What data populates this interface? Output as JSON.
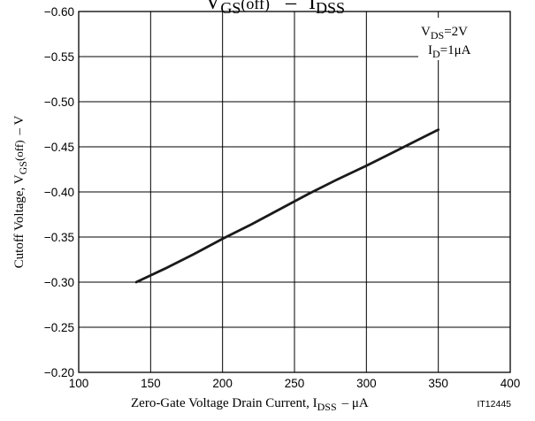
{
  "chart_data": {
    "type": "line",
    "title_parts": {
      "main_1": "V",
      "sub_1": "GS",
      "paren": "(off)",
      "dash": "–",
      "main_2": "I",
      "sub_2": "DSS"
    },
    "xlabel_parts": {
      "text": "Zero-Gate Voltage Drain Current, I",
      "sub": "DSS",
      "unit": "–  μA"
    },
    "ylabel_parts": {
      "text": "Cutoff Voltage, V",
      "sub": "GS",
      "paren": "(off)",
      "unit": "–  V"
    },
    "figure_code": "IT12445",
    "conditions": [
      {
        "main": "V",
        "sub": "DS",
        "rest": "=2V"
      },
      {
        "main": "I",
        "sub": "D",
        "rest": "=1μA"
      }
    ],
    "xlim": [
      100,
      400
    ],
    "ylim": [
      -0.2,
      -0.6
    ],
    "x_ticks": [
      100,
      150,
      200,
      250,
      300,
      350,
      400
    ],
    "x_tick_labels": [
      "100",
      "150",
      "200",
      "250",
      "300",
      "350",
      "400"
    ],
    "y_ticks": [
      -0.6,
      -0.55,
      -0.5,
      -0.45,
      -0.4,
      -0.35,
      -0.3,
      -0.25,
      -0.2
    ],
    "y_tick_labels": [
      "−0.60",
      "−0.55",
      "−0.50",
      "−0.45",
      "−0.40",
      "−0.35",
      "−0.30",
      "−0.25",
      "−0.20"
    ],
    "grid": true,
    "series": [
      {
        "x": [
          140,
          160,
          180,
          200,
          220,
          240,
          260,
          280,
          300,
          320,
          340,
          350
        ],
        "y": [
          -0.3,
          -0.315,
          -0.331,
          -0.348,
          -0.364,
          -0.381,
          -0.398,
          -0.414,
          -0.429,
          -0.445,
          -0.461,
          -0.469
        ]
      }
    ],
    "colors": {
      "line": "#1a1a1a",
      "grid": "#000000",
      "background": "#ffffff"
    }
  }
}
